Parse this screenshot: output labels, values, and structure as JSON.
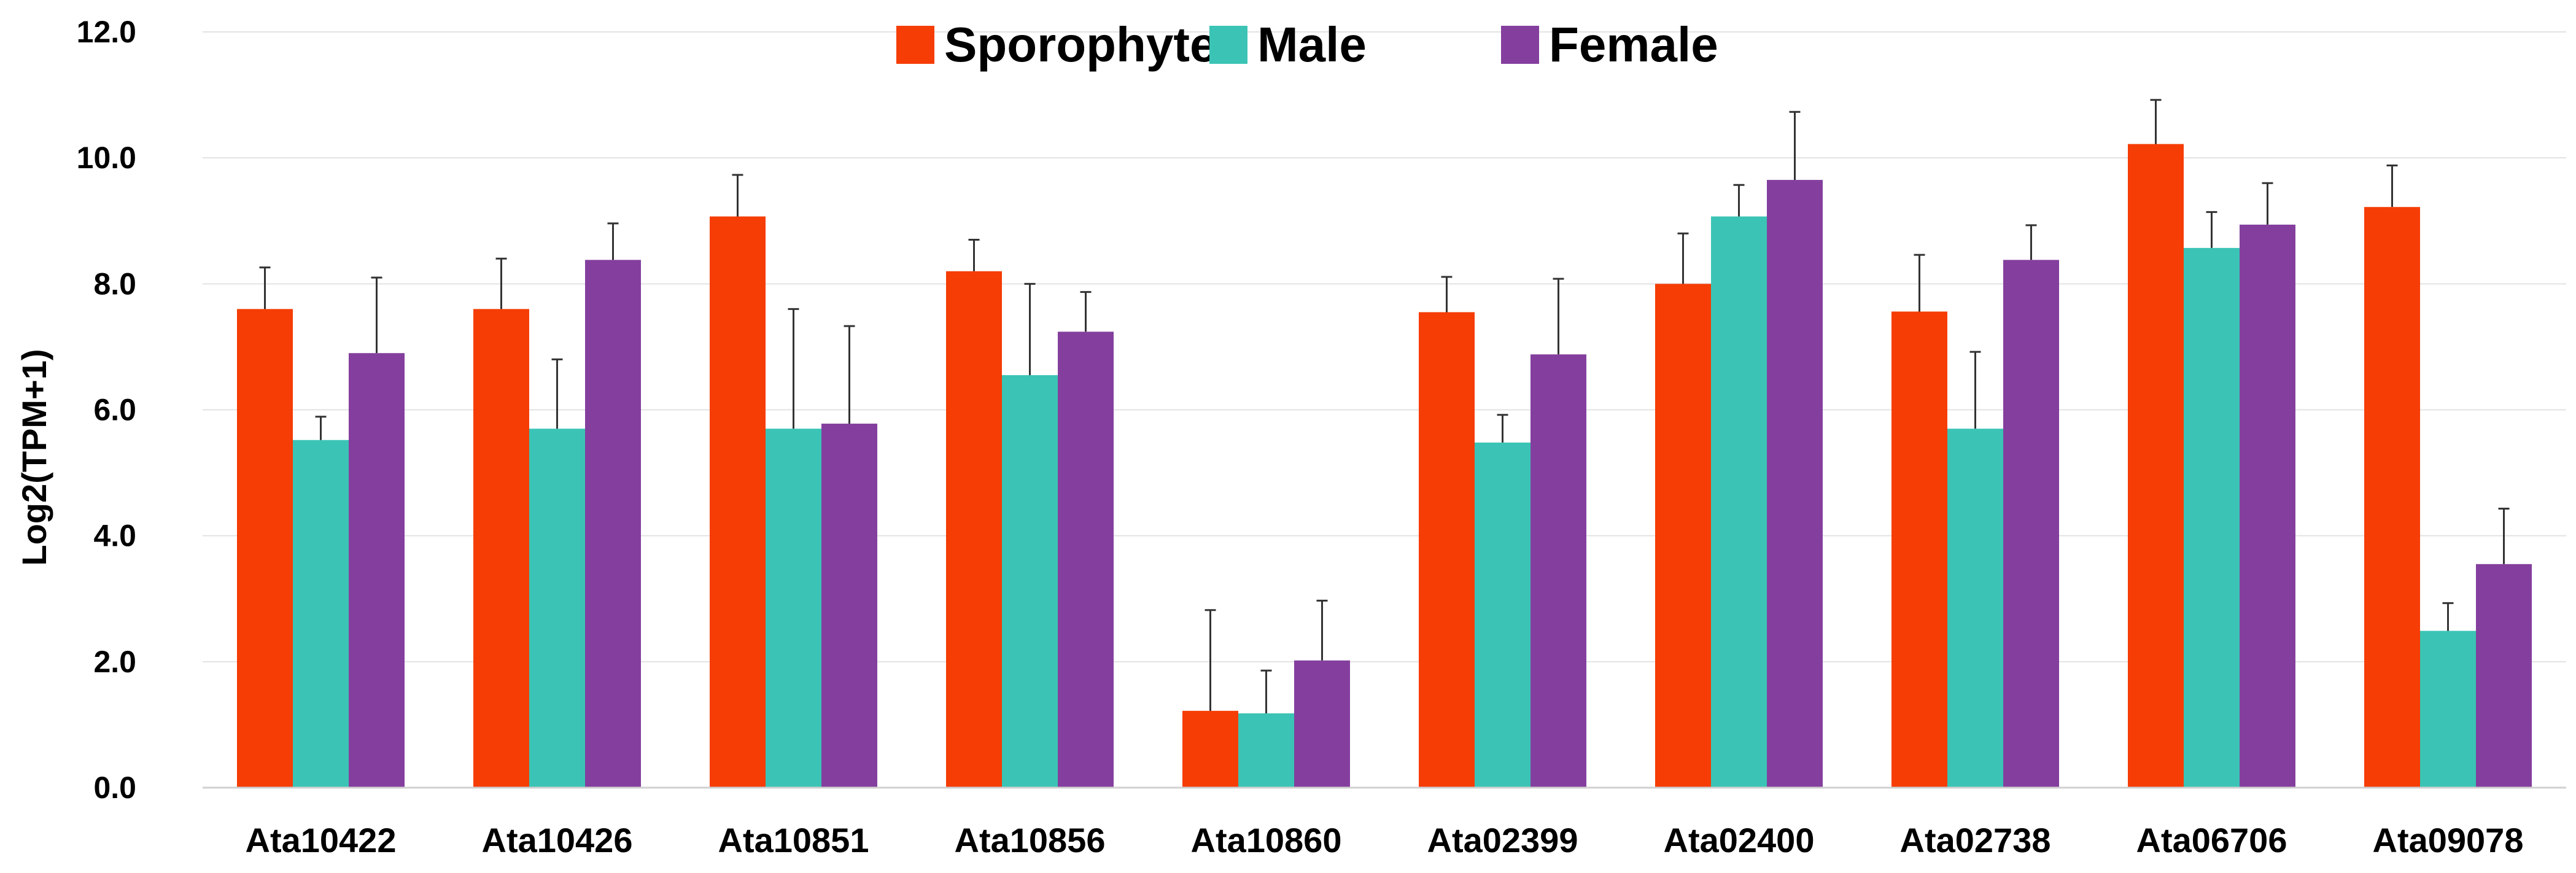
{
  "chart_data": {
    "type": "bar",
    "title": "",
    "xlabel": "",
    "ylabel": "Log2(TPM+1)",
    "ylim": [
      0,
      12
    ],
    "yticks": [
      "0.0",
      "2.0",
      "4.0",
      "6.0",
      "8.0",
      "10.0",
      "12.0"
    ],
    "grid": true,
    "legend_position": "top-center",
    "categories": [
      "Ata10422",
      "Ata10426",
      "Ata10851",
      "Ata10856",
      "Ata10860",
      "Ata02399",
      "Ata02400",
      "Ata02738",
      "Ata06706",
      "Ata09078"
    ],
    "series": [
      {
        "name": "Sporophyte",
        "color": "#F53D05",
        "values": [
          7.6,
          7.6,
          9.07,
          8.2,
          1.22,
          7.55,
          8.0,
          7.56,
          10.22,
          9.22
        ],
        "errors": [
          0.66,
          0.8,
          0.66,
          0.5,
          1.6,
          0.56,
          0.8,
          0.9,
          0.7,
          0.66
        ]
      },
      {
        "name": "Male",
        "color": "#3BC4B5",
        "values": [
          5.52,
          5.7,
          5.7,
          6.55,
          1.18,
          5.48,
          9.07,
          5.7,
          8.57,
          2.49
        ],
        "errors": [
          0.37,
          1.1,
          1.9,
          1.45,
          0.68,
          0.44,
          0.5,
          1.22,
          0.57,
          0.44
        ]
      },
      {
        "name": "Female",
        "color": "#843F9E",
        "values": [
          6.9,
          8.38,
          5.78,
          7.24,
          2.02,
          6.88,
          9.65,
          8.38,
          8.94,
          3.55
        ],
        "errors": [
          1.2,
          0.58,
          1.55,
          0.63,
          0.95,
          1.2,
          1.08,
          0.55,
          0.66,
          0.88
        ]
      }
    ]
  }
}
